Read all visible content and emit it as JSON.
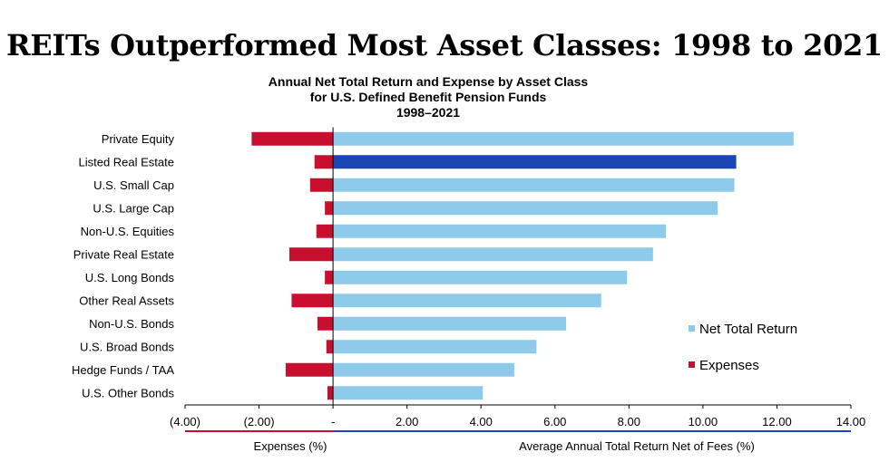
{
  "page_title": "REITs Outperformed Most Asset Classes: 1998 to 2021",
  "chart_data": {
    "type": "bar",
    "orientation": "horizontal",
    "title_lines": [
      "Annual Net Total Return and Expense by Asset Class",
      "for U.S. Defined Benefit Pension Funds",
      "1998–2021"
    ],
    "categories": [
      "Private Equity",
      "Listed Real Estate",
      "U.S. Small Cap",
      "U.S. Large Cap",
      "Non-U.S. Equities",
      "Private Real Estate",
      "U.S. Long Bonds",
      "Other Real Assets",
      "Non-U.S. Bonds",
      "U.S. Broad Bonds",
      "Hedge Funds / TAA",
      "U.S. Other Bonds"
    ],
    "series": [
      {
        "name": "Net Total Return",
        "color": "#8ECAE9",
        "highlight_color": "#1B45B4",
        "highlight_category": "Listed Real Estate",
        "values": [
          12.45,
          10.9,
          10.85,
          10.4,
          9.0,
          8.65,
          7.95,
          7.25,
          6.3,
          5.5,
          4.9,
          4.05
        ]
      },
      {
        "name": "Expenses",
        "color": "#C8102E",
        "values": [
          -2.2,
          -0.5,
          -0.62,
          -0.22,
          -0.45,
          -1.18,
          -0.22,
          -1.12,
          -0.42,
          -0.18,
          -1.28,
          -0.15
        ]
      }
    ],
    "xlim": [
      -4,
      14
    ],
    "x_ticks": [
      -4,
      -2,
      0,
      2,
      4,
      6,
      8,
      10,
      12,
      14
    ],
    "x_tick_labels": [
      "(4.00)",
      "(2.00)",
      "-",
      "2.00",
      "4.00",
      "6.00",
      "8.00",
      "10.00",
      "12.00",
      "14.00"
    ],
    "xlabel_left": "Expenses (%)",
    "xlabel_right": "Average Annual Total Return Net of Fees (%)",
    "axis_colors": {
      "negative": "#C8102E",
      "positive": "#1B45B4"
    },
    "legend_position": "right",
    "grid": false
  }
}
